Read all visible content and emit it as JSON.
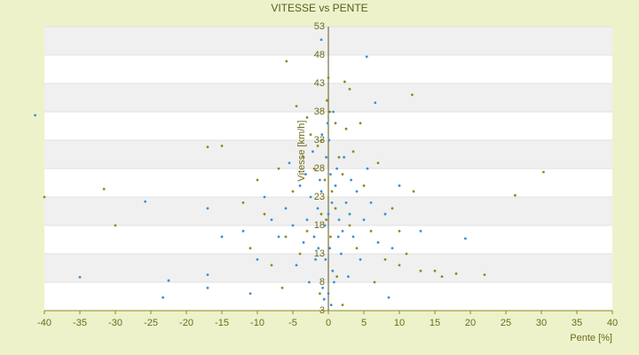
{
  "chart_data": {
    "type": "scatter",
    "title": "VITESSE vs PENTE",
    "x_label": "Pente [%]",
    "y_label": "Vitesse [km/h]",
    "xlim": [
      -40,
      40
    ],
    "xticks": [
      -40,
      -35,
      -30,
      -25,
      -20,
      -15,
      -10,
      -5,
      0,
      5,
      10,
      15,
      20,
      25,
      30,
      35,
      40
    ],
    "ylim": [
      3,
      53
    ],
    "yticks": [
      3,
      8,
      13,
      18,
      23,
      28,
      33,
      38,
      43,
      48,
      53
    ],
    "grid": true,
    "series": [
      {
        "color": "#3a8ed6",
        "x": [
          -41.3,
          -35,
          -23.3,
          -22.5,
          -17,
          -17,
          -11,
          -25.8,
          -17,
          -15,
          6.6,
          5.4,
          -1,
          19.3,
          8.5,
          13,
          0,
          0.5,
          -0.5,
          1,
          -1,
          1.5,
          -1.5,
          2,
          -2,
          0.3,
          -0.3,
          0.2,
          -0.4,
          0.6,
          1.2,
          -1.2,
          2.5,
          -2.5,
          3,
          -3,
          3.5,
          -3.5,
          4,
          -4,
          0.1,
          -0.1,
          0.8,
          -0.8,
          1.8,
          -1.8,
          5,
          -5,
          6,
          -6,
          7,
          -7,
          8,
          -8,
          2.2,
          -2.2,
          0,
          0.4,
          -0.6,
          1.4,
          -1.4,
          3.2,
          -3.2,
          4.5,
          -4.5,
          9,
          -9,
          10,
          -10,
          -12,
          0.7,
          -0.9,
          2.8,
          -2.7,
          5.5,
          -5.5
        ],
        "y": [
          37.4,
          8.9,
          5.3,
          8.3,
          9.3,
          7,
          6,
          22.2,
          21,
          16,
          39.6,
          47.7,
          50.7,
          15.7,
          5.3,
          17,
          20,
          22,
          18,
          25,
          24,
          19,
          21,
          17,
          16,
          27,
          30,
          14,
          12,
          10,
          28,
          26,
          22,
          23,
          20,
          19,
          16,
          15,
          24,
          25,
          33,
          36,
          8,
          7,
          13,
          12,
          19,
          18,
          22,
          21,
          15,
          16,
          20,
          19,
          30,
          31,
          6,
          4,
          5,
          16,
          14,
          26,
          27,
          12,
          11,
          14,
          23,
          25,
          12,
          17,
          38,
          34,
          9,
          8,
          28,
          29
        ]
      },
      {
        "color": "#8c8a1c",
        "x": [
          -40,
          -31.6,
          -30,
          -17,
          -15,
          -5.9,
          11.8,
          30.3,
          26.3,
          22,
          18,
          15,
          10,
          2.3,
          0.5,
          -0.5,
          1,
          -1,
          1.5,
          -1.5,
          2,
          -2,
          2.5,
          -2.5,
          3,
          -3,
          3.5,
          -3.5,
          4,
          -4,
          0.2,
          -0.2,
          1,
          -1,
          5,
          -5,
          6,
          -6,
          7,
          -7,
          8,
          -8,
          9,
          -9,
          10,
          -10,
          11,
          -11,
          12,
          -12,
          0,
          3,
          -3,
          4.5,
          -4.5,
          1.2,
          -1.2,
          2,
          6.5,
          -6.5,
          13,
          16,
          0.3,
          -0.3
        ],
        "y": [
          23,
          24.4,
          18,
          31.8,
          32,
          46.9,
          41,
          27.4,
          23.3,
          9.3,
          9.5,
          10,
          11,
          43.3,
          24,
          26,
          21,
          20,
          30,
          32,
          27,
          28,
          35,
          34,
          18,
          17,
          31,
          30,
          14,
          13,
          38,
          40,
          36,
          33,
          25,
          24,
          17,
          16,
          29,
          28,
          12,
          11,
          21,
          20,
          17,
          26,
          13,
          14,
          24,
          22,
          44,
          42,
          37,
          36,
          39,
          9,
          6,
          4,
          8,
          7,
          10,
          9,
          16,
          19
        ]
      }
    ]
  }
}
